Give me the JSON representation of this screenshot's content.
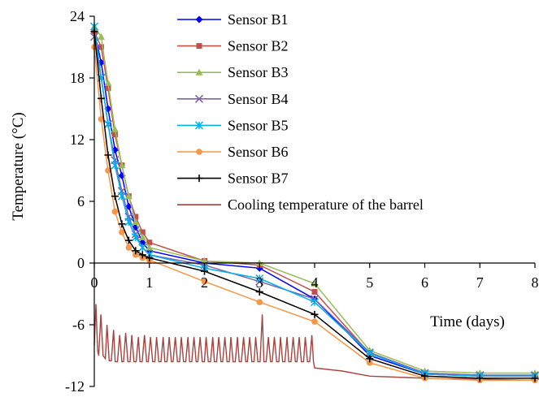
{
  "chart_data": {
    "type": "line",
    "xlabel": "Time (days)",
    "ylabel": "Temperature (°C)",
    "xlim": [
      0,
      8
    ],
    "ylim": [
      -12,
      24
    ],
    "xticks": [
      0,
      1,
      2,
      3,
      4,
      5,
      6,
      7,
      8
    ],
    "xtick_labels": [
      "0",
      "1",
      "2",
      "3",
      "4",
      "5",
      "6",
      "7",
      "8"
    ],
    "yticks": [
      -12,
      -6,
      0,
      6,
      12,
      18,
      24
    ],
    "ytick_labels": [
      "-12",
      "-6",
      "0",
      "6",
      "12",
      "18",
      "24"
    ],
    "grid": false,
    "legend_position": "top-right",
    "series": [
      {
        "name": "Sensor B1",
        "color": "#0000ff",
        "marker": "diamond",
        "x": [
          0,
          0.125,
          0.25,
          0.375,
          0.5,
          0.625,
          0.75,
          0.875,
          1,
          2,
          3,
          4,
          5,
          6,
          7,
          8
        ],
        "y": [
          22.5,
          19.5,
          15,
          11,
          8.5,
          5.5,
          3.5,
          2,
          1.2,
          0,
          -0.5,
          -3.5,
          -9,
          -10.8,
          -11,
          -11
        ]
      },
      {
        "name": "Sensor B2",
        "color": "#c0504d",
        "marker": "square",
        "x": [
          0,
          0.125,
          0.25,
          0.375,
          0.5,
          0.625,
          0.75,
          0.875,
          1,
          2,
          3,
          4,
          5,
          6,
          7,
          8
        ],
        "y": [
          22.5,
          21,
          17,
          12.5,
          9.5,
          6.5,
          4.5,
          3,
          2,
          0.2,
          -0.2,
          -2.8,
          -8.8,
          -10.7,
          -10.9,
          -10.9
        ]
      },
      {
        "name": "Sensor B3",
        "color": "#9bbb59",
        "marker": "triangle",
        "x": [
          0,
          0.125,
          0.25,
          0.375,
          0.5,
          0.625,
          0.75,
          0.875,
          1,
          2,
          3,
          4,
          5,
          6,
          7,
          8
        ],
        "y": [
          23,
          22,
          17.5,
          13,
          9.5,
          6.5,
          4,
          2.5,
          1.5,
          0.2,
          0,
          -2,
          -8.5,
          -10.5,
          -10.7,
          -10.7
        ]
      },
      {
        "name": "Sensor B4",
        "color": "#8064a2",
        "marker": "x",
        "x": [
          0,
          0.125,
          0.25,
          0.375,
          0.5,
          0.625,
          0.75,
          0.875,
          1,
          2,
          3,
          4,
          5,
          6,
          7,
          8
        ],
        "y": [
          22,
          18,
          13.5,
          10,
          7,
          4.5,
          2.8,
          1.5,
          0.8,
          -0.2,
          -1.8,
          -3.5,
          -8.7,
          -10.7,
          -10.9,
          -10.9
        ]
      },
      {
        "name": "Sensor B5",
        "color": "#00b0f0",
        "marker": "asterisk",
        "x": [
          0,
          0.125,
          0.25,
          0.375,
          0.5,
          0.625,
          0.75,
          0.875,
          1,
          2,
          3,
          4,
          5,
          6,
          7,
          8
        ],
        "y": [
          23,
          18,
          13.5,
          9.5,
          6.5,
          4,
          2.5,
          1.5,
          0.8,
          -0.5,
          -1.5,
          -3.8,
          -8.8,
          -10.8,
          -11,
          -11
        ]
      },
      {
        "name": "Sensor B6",
        "color": "#f79646",
        "marker": "circle",
        "x": [
          0,
          0.125,
          0.25,
          0.375,
          0.5,
          0.625,
          0.75,
          0.875,
          1,
          2,
          3,
          4,
          5,
          6,
          7,
          8
        ],
        "y": [
          21,
          14,
          9,
          5,
          3,
          1.5,
          0.8,
          0.5,
          0.3,
          -1.8,
          -3.8,
          -5.7,
          -9.7,
          -11.2,
          -11.4,
          -11.4
        ]
      },
      {
        "name": "Sensor B7",
        "color": "#000000",
        "marker": "plus",
        "x": [
          0,
          0.125,
          0.25,
          0.375,
          0.5,
          0.625,
          0.75,
          0.875,
          1,
          2,
          3,
          4,
          5,
          6,
          7,
          8
        ],
        "y": [
          22.5,
          16,
          10.5,
          6.5,
          3.8,
          2.2,
          1.2,
          0.8,
          0.5,
          -0.8,
          -2.8,
          -5,
          -9.3,
          -11,
          -11.2,
          -11.2
        ]
      },
      {
        "name": "Cooling temperature of the barrel",
        "color": "#a5443f",
        "marker": "none",
        "x": [
          0,
          0.03,
          0.06,
          0.08,
          0.12,
          0.16,
          0.2,
          0.23,
          0.27,
          0.31,
          0.35,
          0.38,
          0.42,
          0.46,
          0.5,
          0.53,
          0.57,
          0.61,
          0.65,
          0.68,
          0.72,
          0.76,
          0.8,
          0.83,
          0.87,
          0.91,
          0.95,
          0.98,
          1.02,
          1.06,
          1.1,
          1.13,
          1.17,
          1.21,
          1.25,
          1.28,
          1.32,
          1.36,
          1.4,
          1.43,
          1.47,
          1.51,
          1.55,
          1.58,
          1.62,
          1.66,
          1.7,
          1.73,
          1.77,
          1.81,
          1.85,
          1.88,
          1.92,
          1.96,
          2,
          2.03,
          2.07,
          2.11,
          2.15,
          2.18,
          2.22,
          2.26,
          2.3,
          2.33,
          2.37,
          2.41,
          2.45,
          2.48,
          2.52,
          2.56,
          2.6,
          2.63,
          2.67,
          2.71,
          2.75,
          2.78,
          2.82,
          2.86,
          2.9,
          2.93,
          2.97,
          3.01,
          3.05,
          3.08,
          3.12,
          3.16,
          3.2,
          3.23,
          3.27,
          3.31,
          3.35,
          3.38,
          3.42,
          3.46,
          3.5,
          3.53,
          3.57,
          3.61,
          3.65,
          3.68,
          3.72,
          3.76,
          3.8,
          3.83,
          3.87,
          3.91,
          3.95,
          3.98,
          4,
          4.5,
          5,
          6,
          7,
          8
        ],
        "y": [
          -8,
          -4,
          -8.5,
          -9,
          -5,
          -9,
          -9.3,
          -6,
          -9.5,
          -9.5,
          -6.5,
          -9.6,
          -9.6,
          -7,
          -9.6,
          -9.6,
          -6.8,
          -9.6,
          -9.6,
          -7,
          -9.6,
          -9.6,
          -7.2,
          -9.6,
          -9.6,
          -7,
          -9.6,
          -9.6,
          -7.2,
          -9.6,
          -9.6,
          -7.2,
          -9.6,
          -9.6,
          -7.2,
          -9.6,
          -9.6,
          -7.2,
          -9.6,
          -9.6,
          -7.2,
          -9.6,
          -9.6,
          -7.2,
          -9.6,
          -9.6,
          -7.2,
          -9.6,
          -9.6,
          -7.2,
          -9.6,
          -9.6,
          -7.2,
          -9.6,
          -9.6,
          -7.2,
          -9.6,
          -9.6,
          -7.2,
          -9.6,
          -9.6,
          -7.2,
          -9.6,
          -9.6,
          -7.2,
          -9.6,
          -9.6,
          -7.2,
          -9.6,
          -9.6,
          -7.2,
          -9.6,
          -9.6,
          -7.2,
          -9.6,
          -9.6,
          -7.2,
          -9.6,
          -9.6,
          -7.2,
          -9.6,
          -9.6,
          -5,
          -9.6,
          -9.6,
          -7.2,
          -9.6,
          -9.6,
          -7.2,
          -9.6,
          -9.6,
          -7.2,
          -9.6,
          -9.6,
          -7.2,
          -9.6,
          -9.6,
          -7.2,
          -9.6,
          -9.6,
          -7.2,
          -9.6,
          -9.6,
          -7.2,
          -9.6,
          -9.6,
          -7,
          -9.6,
          -10.2,
          -10.5,
          -11,
          -11.2,
          -11.3,
          -11.4
        ]
      }
    ]
  }
}
